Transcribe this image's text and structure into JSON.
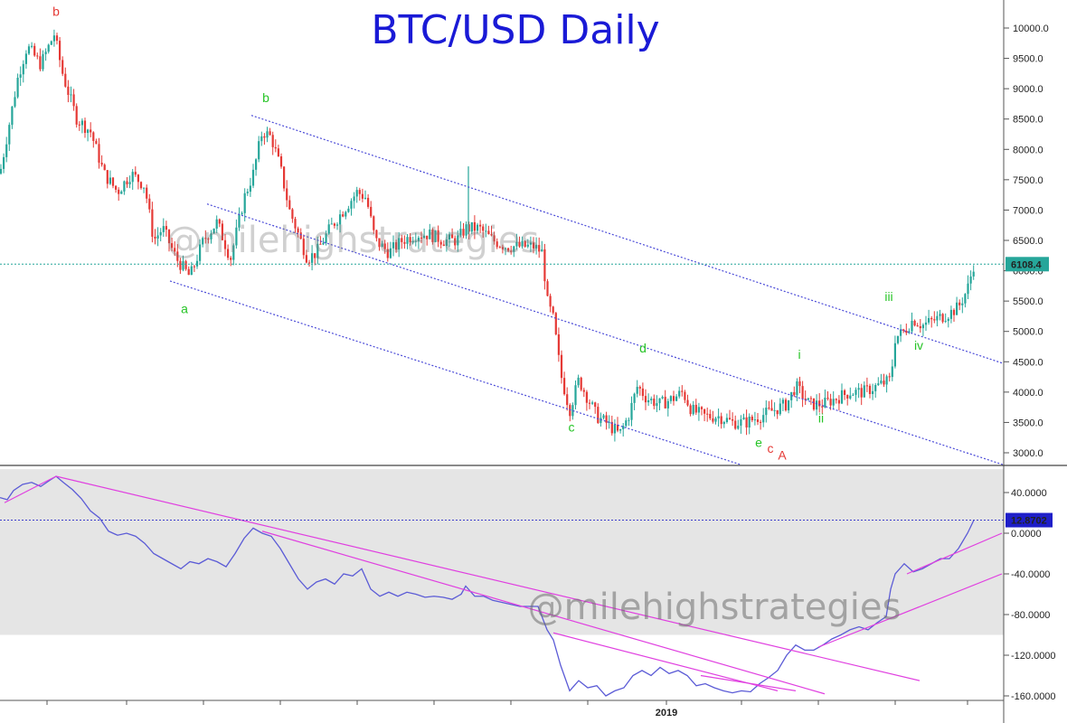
{
  "chart_data": [
    {
      "type": "candlestick",
      "title": "BTC/USD Daily",
      "watermark": "@milehighstrategies",
      "y_ticks": [
        "10000.0",
        "9500.0",
        "9000.0",
        "8500.0",
        "8000.0",
        "7500.0",
        "7000.0",
        "6500.0",
        "6000.0",
        "5500.0",
        "5000.0",
        "4500.0",
        "4000.0",
        "3500.0",
        "3000.0"
      ],
      "ylim": [
        2800,
        10300
      ],
      "last_price": 6108.4,
      "last_price_label": "6108.4",
      "x_label": "2019",
      "colors": {
        "up": "#26a69a",
        "down": "#e53935",
        "channel": "#4b4bd8",
        "last": "#26a69a"
      },
      "price_path": [
        [
          0,
          7600
        ],
        [
          10,
          8400
        ],
        [
          20,
          9200
        ],
        [
          30,
          9700
        ],
        [
          45,
          9400
        ],
        [
          60,
          9900
        ],
        [
          70,
          9200
        ],
        [
          85,
          8500
        ],
        [
          100,
          8300
        ],
        [
          115,
          7600
        ],
        [
          130,
          7300
        ],
        [
          145,
          7600
        ],
        [
          160,
          7400
        ],
        [
          170,
          6500
        ],
        [
          180,
          6700
        ],
        [
          195,
          6200
        ],
        [
          210,
          5900
        ],
        [
          225,
          6500
        ],
        [
          240,
          6800
        ],
        [
          255,
          6200
        ],
        [
          270,
          7200
        ],
        [
          280,
          7600
        ],
        [
          290,
          8300
        ],
        [
          300,
          8200
        ],
        [
          310,
          7700
        ],
        [
          320,
          7000
        ],
        [
          330,
          6600
        ],
        [
          340,
          6200
        ],
        [
          350,
          6300
        ],
        [
          365,
          6700
        ],
        [
          380,
          7000
        ],
        [
          395,
          7300
        ],
        [
          405,
          7200
        ],
        [
          415,
          6500
        ],
        [
          430,
          6300
        ],
        [
          445,
          6500
        ],
        [
          460,
          6600
        ],
        [
          475,
          6600
        ],
        [
          490,
          6500
        ],
        [
          505,
          6500
        ],
        [
          515,
          6700
        ],
        [
          530,
          6700
        ],
        [
          545,
          6500
        ],
        [
          560,
          6400
        ],
        [
          575,
          6400
        ],
        [
          590,
          6400
        ],
        [
          600,
          6300
        ],
        [
          605,
          5500
        ],
        [
          612,
          5200
        ],
        [
          620,
          4300
        ],
        [
          630,
          3700
        ],
        [
          640,
          4200
        ],
        [
          650,
          3900
        ],
        [
          660,
          3600
        ],
        [
          670,
          3500
        ],
        [
          685,
          3300
        ],
        [
          695,
          3600
        ],
        [
          705,
          4100
        ],
        [
          715,
          3900
        ],
        [
          730,
          3800
        ],
        [
          745,
          3900
        ],
        [
          755,
          4000
        ],
        [
          765,
          3700
        ],
        [
          780,
          3600
        ],
        [
          795,
          3600
        ],
        [
          810,
          3500
        ],
        [
          825,
          3500
        ],
        [
          840,
          3600
        ],
        [
          855,
          3700
        ],
        [
          870,
          3800
        ],
        [
          880,
          4100
        ],
        [
          895,
          3800
        ],
        [
          910,
          3800
        ],
        [
          925,
          3900
        ],
        [
          940,
          4000
        ],
        [
          955,
          4000
        ],
        [
          970,
          4100
        ],
        [
          985,
          4200
        ],
        [
          990,
          4900
        ],
        [
          1000,
          5000
        ],
        [
          1010,
          5200
        ],
        [
          1020,
          5100
        ],
        [
          1035,
          5200
        ],
        [
          1050,
          5300
        ],
        [
          1060,
          5400
        ],
        [
          1070,
          5700
        ],
        [
          1077,
          6108
        ]
      ],
      "wave_labels": [
        {
          "text": "b",
          "x": 62,
          "y": 10200,
          "color": "#e53935"
        },
        {
          "text": "a",
          "x": 204,
          "y": 5300,
          "color": "#27c427"
        },
        {
          "text": "b",
          "x": 294,
          "y": 8780,
          "color": "#27c427"
        },
        {
          "text": "c",
          "x": 632,
          "y": 3350,
          "color": "#27c427"
        },
        {
          "text": "d",
          "x": 711,
          "y": 4650,
          "color": "#27c427"
        },
        {
          "text": "e",
          "x": 839,
          "y": 3100,
          "color": "#27c427"
        },
        {
          "text": "c",
          "x": 852,
          "y": 3000,
          "color": "#e53935"
        },
        {
          "text": "A",
          "x": 865,
          "y": 2890,
          "color": "#e53935"
        },
        {
          "text": "i",
          "x": 884,
          "y": 4550,
          "color": "#27c427"
        },
        {
          "text": "ii",
          "x": 908,
          "y": 3500,
          "color": "#27c427"
        },
        {
          "text": "iii",
          "x": 983,
          "y": 5500,
          "color": "#27c427"
        },
        {
          "text": "iv",
          "x": 1016,
          "y": 4700,
          "color": "#27c427"
        }
      ],
      "channels": [
        {
          "x1": 278,
          "y1": 8560,
          "x2": 1110,
          "y2": 4470
        },
        {
          "x1": 229,
          "y1": 7100,
          "x2": 1110,
          "y2": 2800
        },
        {
          "x1": 188,
          "y1": 5830,
          "x2": 820,
          "y2": 2800
        }
      ]
    },
    {
      "type": "line",
      "watermark": "@milehighstrategies",
      "y_ticks": [
        "40.0000",
        "0.0000",
        "-40.0000",
        "-80.0000",
        "-120.0000",
        "-160.0000"
      ],
      "ylim": [
        -163,
        62
      ],
      "band": [
        -100,
        63
      ],
      "last_value": 12.8702,
      "last_value_label": "12.8702",
      "colors": {
        "line": "#5b5bd6",
        "trend": "#e040e0",
        "band": "#e5e5e5",
        "level": "#3b3bcc"
      },
      "series": [
        [
          0,
          35
        ],
        [
          8,
          33
        ],
        [
          15,
          42
        ],
        [
          25,
          48
        ],
        [
          35,
          50
        ],
        [
          45,
          46
        ],
        [
          55,
          52
        ],
        [
          62,
          56
        ],
        [
          70,
          50
        ],
        [
          80,
          43
        ],
        [
          90,
          34
        ],
        [
          100,
          22
        ],
        [
          110,
          15
        ],
        [
          120,
          2
        ],
        [
          130,
          -2
        ],
        [
          140,
          0
        ],
        [
          150,
          -3
        ],
        [
          160,
          -10
        ],
        [
          170,
          -20
        ],
        [
          180,
          -25
        ],
        [
          190,
          -30
        ],
        [
          200,
          -35
        ],
        [
          210,
          -28
        ],
        [
          220,
          -30
        ],
        [
          230,
          -25
        ],
        [
          240,
          -28
        ],
        [
          250,
          -33
        ],
        [
          260,
          -20
        ],
        [
          270,
          -5
        ],
        [
          280,
          5
        ],
        [
          290,
          0
        ],
        [
          300,
          -3
        ],
        [
          310,
          -15
        ],
        [
          320,
          -30
        ],
        [
          330,
          -45
        ],
        [
          340,
          -55
        ],
        [
          350,
          -48
        ],
        [
          360,
          -45
        ],
        [
          370,
          -50
        ],
        [
          380,
          -40
        ],
        [
          390,
          -42
        ],
        [
          400,
          -35
        ],
        [
          410,
          -55
        ],
        [
          420,
          -62
        ],
        [
          430,
          -58
        ],
        [
          440,
          -62
        ],
        [
          450,
          -58
        ],
        [
          460,
          -60
        ],
        [
          470,
          -63
        ],
        [
          480,
          -62
        ],
        [
          490,
          -63
        ],
        [
          500,
          -65
        ],
        [
          510,
          -60
        ],
        [
          515,
          -52
        ],
        [
          525,
          -62
        ],
        [
          535,
          -62
        ],
        [
          545,
          -66
        ],
        [
          555,
          -68
        ],
        [
          565,
          -70
        ],
        [
          575,
          -72
        ],
        [
          585,
          -72
        ],
        [
          595,
          -72
        ],
        [
          605,
          -95
        ],
        [
          612,
          -105
        ],
        [
          620,
          -130
        ],
        [
          630,
          -155
        ],
        [
          640,
          -145
        ],
        [
          650,
          -152
        ],
        [
          660,
          -150
        ],
        [
          670,
          -160
        ],
        [
          680,
          -155
        ],
        [
          690,
          -152
        ],
        [
          700,
          -140
        ],
        [
          710,
          -135
        ],
        [
          720,
          -140
        ],
        [
          730,
          -132
        ],
        [
          740,
          -138
        ],
        [
          750,
          -135
        ],
        [
          760,
          -140
        ],
        [
          770,
          -150
        ],
        [
          780,
          -148
        ],
        [
          790,
          -152
        ],
        [
          800,
          -155
        ],
        [
          810,
          -157
        ],
        [
          820,
          -155
        ],
        [
          830,
          -156
        ],
        [
          840,
          -148
        ],
        [
          850,
          -142
        ],
        [
          860,
          -135
        ],
        [
          870,
          -120
        ],
        [
          880,
          -110
        ],
        [
          890,
          -115
        ],
        [
          900,
          -115
        ],
        [
          910,
          -110
        ],
        [
          920,
          -104
        ],
        [
          930,
          -100
        ],
        [
          940,
          -95
        ],
        [
          950,
          -92
        ],
        [
          960,
          -95
        ],
        [
          970,
          -88
        ],
        [
          980,
          -82
        ],
        [
          985,
          -55
        ],
        [
          990,
          -40
        ],
        [
          1000,
          -30
        ],
        [
          1010,
          -38
        ],
        [
          1020,
          -35
        ],
        [
          1030,
          -30
        ],
        [
          1040,
          -25
        ],
        [
          1050,
          -25
        ],
        [
          1060,
          -15
        ],
        [
          1070,
          0
        ],
        [
          1077,
          12.87
        ]
      ],
      "trendlines": [
        {
          "x1": 5,
          "y1": 30,
          "x2": 62,
          "y2": 56
        },
        {
          "x1": 62,
          "y1": 56,
          "x2": 1017,
          "y2": -145
        },
        {
          "x1": 290,
          "y1": 2,
          "x2": 912,
          "y2": -158
        },
        {
          "x1": 612,
          "y1": -98,
          "x2": 860,
          "y2": -155
        },
        {
          "x1": 775,
          "y1": -140,
          "x2": 880,
          "y2": -155
        },
        {
          "x1": 905,
          "y1": -112,
          "x2": 1108,
          "y2": -40
        },
        {
          "x1": 1003,
          "y1": -40,
          "x2": 1108,
          "y2": 0
        }
      ]
    }
  ]
}
